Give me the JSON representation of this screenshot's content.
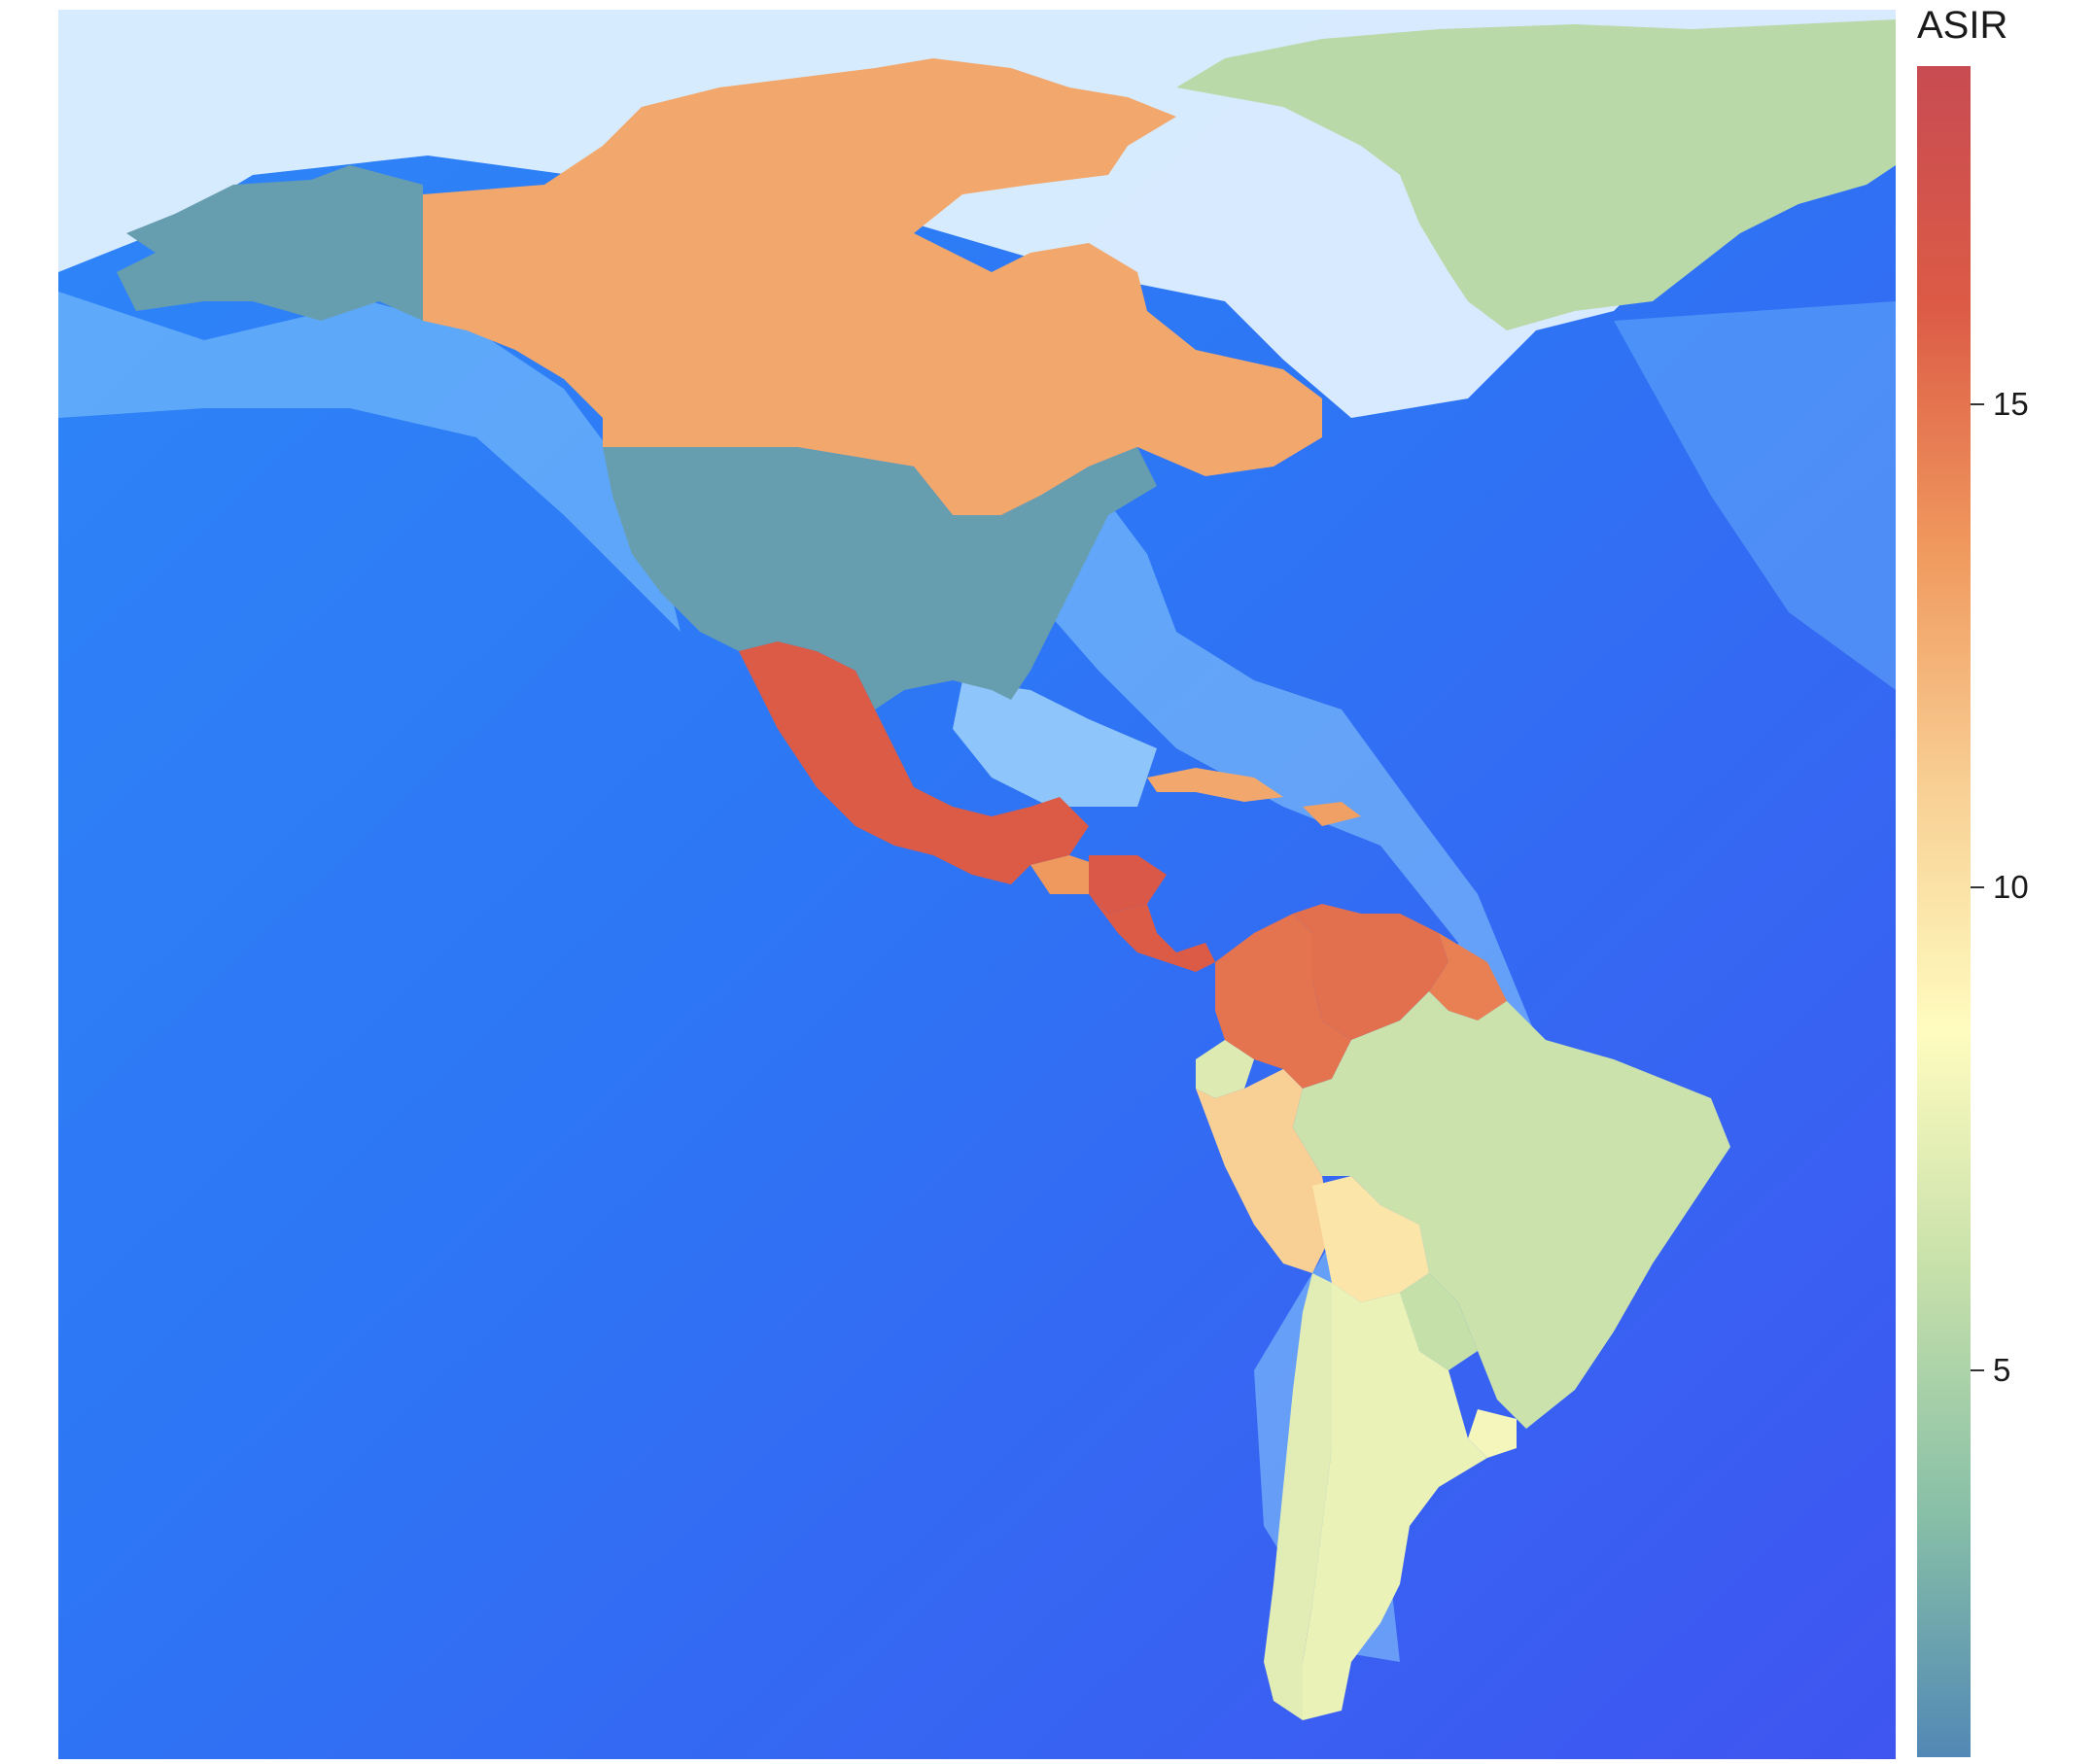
{
  "legend": {
    "title": "ASIR",
    "min": 1.0,
    "max": 18.5,
    "ticks": [
      {
        "value": 15,
        "label": "15"
      },
      {
        "value": 10,
        "label": "10"
      },
      {
        "value": 5,
        "label": "5"
      }
    ],
    "palette": [
      "#5288b5",
      "#87bfa7",
      "#c6e0aa",
      "#fffcbf",
      "#f8d095",
      "#f0995e",
      "#dc5b46",
      "#c84b52"
    ]
  },
  "colors": {
    "ocean_deep": "#3f55f0",
    "ocean_mid": "#2f86f8",
    "shelf": "#8ecdfb",
    "ice": "#e6f4ff"
  },
  "regions": [
    {
      "id": "alaska",
      "value": 2.0
    },
    {
      "id": "canada",
      "value": 12.8
    },
    {
      "id": "greenland",
      "value": 5.5
    },
    {
      "id": "usa",
      "value": 2.0
    },
    {
      "id": "mexico",
      "value": 16.0
    },
    {
      "id": "guatemala",
      "value": 13.5
    },
    {
      "id": "honduras",
      "value": 16.4
    },
    {
      "id": "central-america-south",
      "value": 16.0
    },
    {
      "id": "cuba",
      "value": 12.8
    },
    {
      "id": "hispaniola",
      "value": 13.2
    },
    {
      "id": "colombia",
      "value": 15.0
    },
    {
      "id": "venezuela",
      "value": 15.2
    },
    {
      "id": "guianas",
      "value": 14.5
    },
    {
      "id": "ecuador",
      "value": 7.0
    },
    {
      "id": "peru",
      "value": 11.0
    },
    {
      "id": "brazil",
      "value": 6.2
    },
    {
      "id": "bolivia",
      "value": 9.8
    },
    {
      "id": "paraguay",
      "value": 6.0
    },
    {
      "id": "uruguay",
      "value": 8.0
    },
    {
      "id": "argentina",
      "value": 7.6
    },
    {
      "id": "chile",
      "value": 7.2
    }
  ]
}
